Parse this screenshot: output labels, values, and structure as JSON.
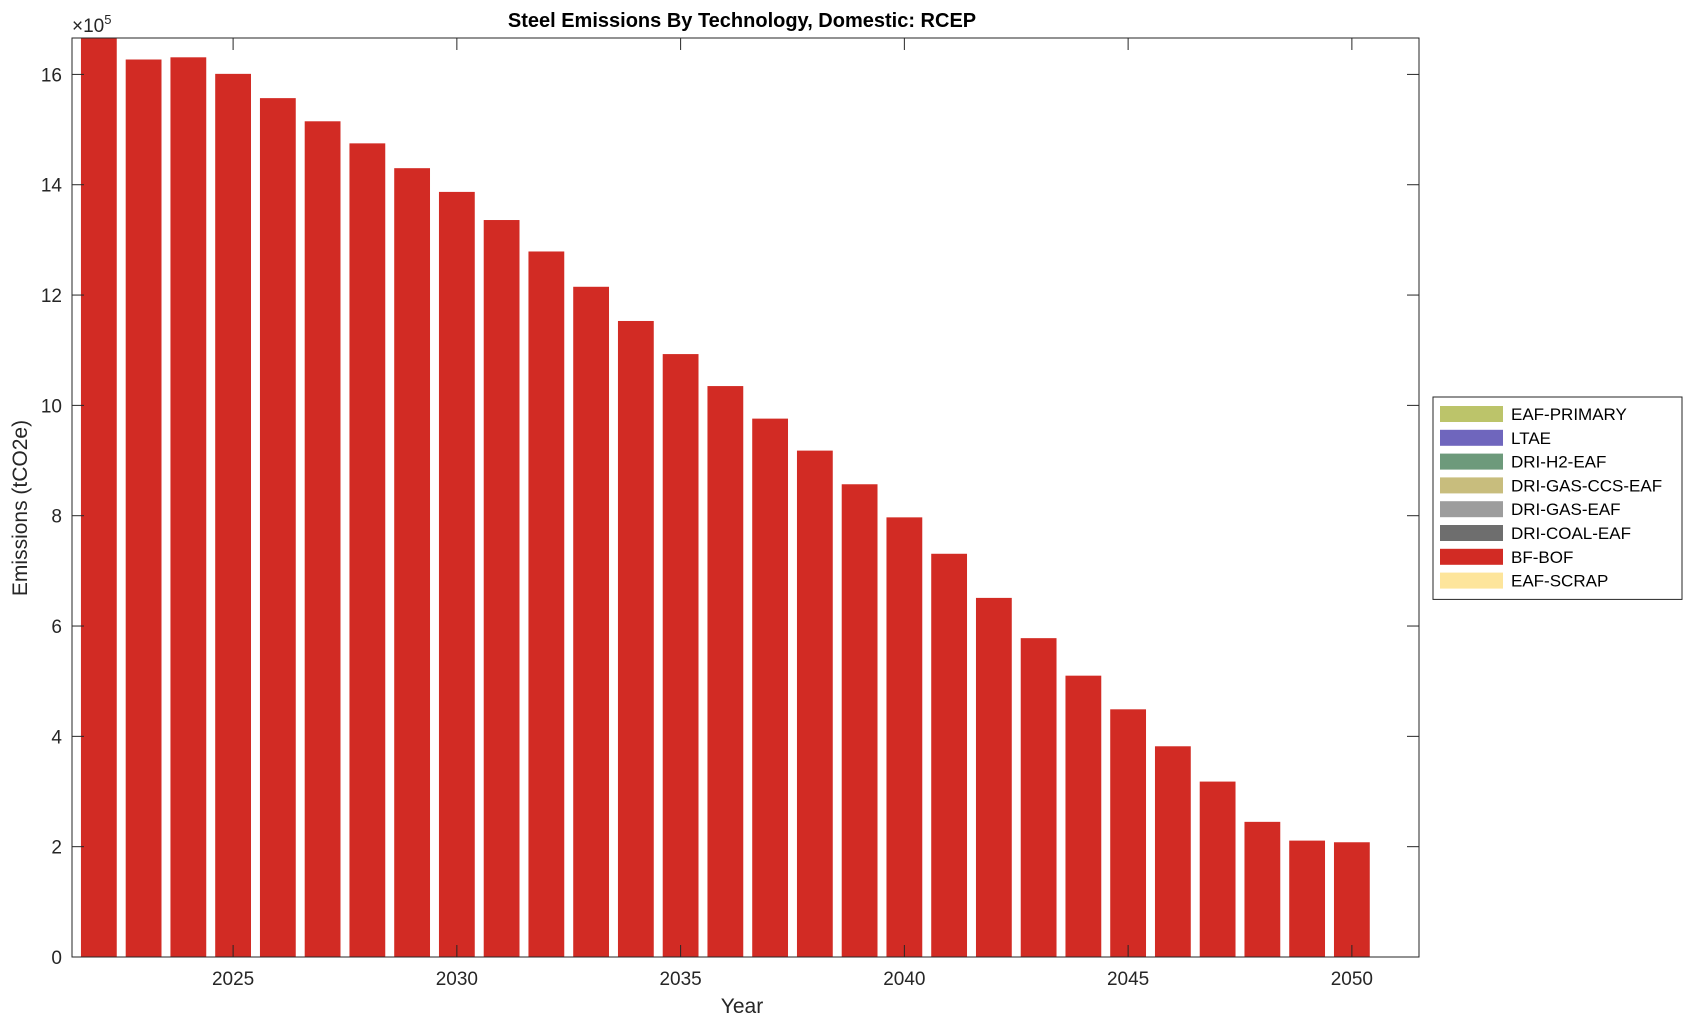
{
  "chart_data": {
    "type": "bar",
    "stacked": true,
    "title": "Steel Emissions By Technology, Domestic: RCEP",
    "xlabel": "Year",
    "ylabel": "Emissions (tCO2e)",
    "y_exponent_label": "×10",
    "y_exponent": "5",
    "y_scale_factor": 100000,
    "xlim": [
      2021.4,
      2051.5
    ],
    "ylim": [
      0,
      1666000
    ],
    "xticks": [
      2025,
      2030,
      2035,
      2040,
      2045,
      2050
    ],
    "yticks": [
      0,
      2,
      4,
      6,
      8,
      10,
      12,
      14,
      16
    ],
    "grid": false,
    "legend_position": "outside-right",
    "x": [
      2022,
      2023,
      2024,
      2025,
      2026,
      2027,
      2028,
      2029,
      2030,
      2031,
      2032,
      2033,
      2034,
      2035,
      2036,
      2037,
      2038,
      2039,
      2040,
      2041,
      2042,
      2043,
      2044,
      2045,
      2046,
      2047,
      2048,
      2049,
      2050
    ],
    "series": [
      {
        "name": "EAF-PRIMARY",
        "color": "#bcc46a",
        "values": [
          0,
          0,
          0,
          0,
          0,
          0,
          0,
          0,
          0,
          0,
          0,
          0,
          0,
          0,
          0,
          0,
          0,
          0,
          0,
          0,
          0,
          0,
          0,
          0,
          0,
          0,
          0,
          0,
          0
        ]
      },
      {
        "name": "LTAE",
        "color": "#6f66bd",
        "values": [
          0,
          0,
          0,
          0,
          0,
          0,
          0,
          0,
          0,
          0,
          0,
          0,
          0,
          0,
          0,
          0,
          0,
          0,
          0,
          0,
          0,
          0,
          0,
          0,
          0,
          0,
          0,
          0,
          0
        ]
      },
      {
        "name": "DRI-H2-EAF",
        "color": "#6d9a7b",
        "values": [
          0,
          0,
          0,
          0,
          0,
          0,
          0,
          0,
          0,
          0,
          0,
          0,
          0,
          0,
          0,
          0,
          0,
          0,
          0,
          0,
          0,
          0,
          0,
          0,
          0,
          0,
          0,
          0,
          0
        ]
      },
      {
        "name": "DRI-GAS-CCS-EAF",
        "color": "#c8bd7d",
        "values": [
          0,
          0,
          0,
          0,
          0,
          0,
          0,
          0,
          0,
          0,
          0,
          0,
          0,
          0,
          0,
          0,
          0,
          0,
          0,
          0,
          0,
          0,
          0,
          0,
          0,
          0,
          0,
          0,
          0
        ]
      },
      {
        "name": "DRI-GAS-EAF",
        "color": "#9d9d9d",
        "values": [
          0,
          0,
          0,
          0,
          0,
          0,
          0,
          0,
          0,
          0,
          0,
          0,
          0,
          0,
          0,
          0,
          0,
          0,
          0,
          0,
          0,
          0,
          0,
          0,
          0,
          0,
          0,
          0,
          0
        ]
      },
      {
        "name": "DRI-COAL-EAF",
        "color": "#6e6e6e",
        "values": [
          0,
          0,
          0,
          0,
          0,
          0,
          0,
          0,
          0,
          0,
          0,
          0,
          0,
          0,
          0,
          0,
          0,
          0,
          0,
          0,
          0,
          0,
          0,
          0,
          0,
          0,
          0,
          0,
          0
        ]
      },
      {
        "name": "BF-BOF",
        "color": "#d22b24",
        "values": [
          1666000,
          1627000,
          1631000,
          1601000,
          1557000,
          1515000,
          1475000,
          1430000,
          1387000,
          1336000,
          1279000,
          1215000,
          1153000,
          1093000,
          1035000,
          976000,
          918000,
          857000,
          797000,
          731000,
          651000,
          578000,
          510000,
          449000,
          382000,
          318000,
          245000,
          211000,
          208000
        ]
      },
      {
        "name": "EAF-SCRAP",
        "color": "#fde59b",
        "values": [
          0,
          0,
          0,
          0,
          0,
          0,
          0,
          0,
          0,
          0,
          0,
          0,
          0,
          0,
          0,
          0,
          0,
          0,
          0,
          0,
          0,
          0,
          0,
          0,
          0,
          0,
          0,
          0,
          0
        ]
      }
    ]
  }
}
